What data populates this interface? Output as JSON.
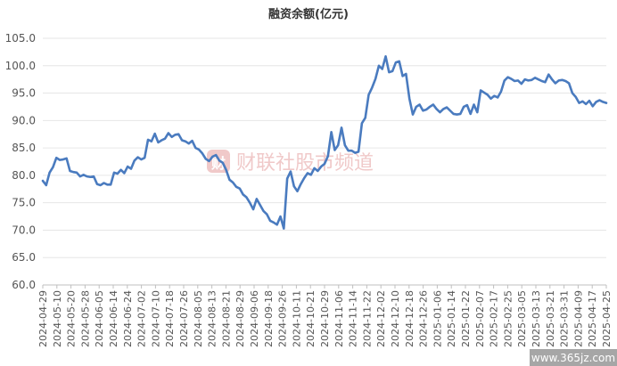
{
  "chart_data": {
    "type": "line",
    "title": "融资余额(亿元)",
    "xlabel": "",
    "ylabel": "",
    "ylim": [
      60.0,
      105.0
    ],
    "yticks": [
      "60.0",
      "65.0",
      "70.0",
      "75.0",
      "80.0",
      "85.0",
      "90.0",
      "95.0",
      "100.0",
      "105.0"
    ],
    "xticks": [
      "2024-04-29",
      "2024-05-10",
      "2024-05-20",
      "2024-05-28",
      "2024-06-05",
      "2024-06-14",
      "2024-06-24",
      "2024-07-02",
      "2024-07-10",
      "2024-07-18",
      "2024-07-26",
      "2024-08-05",
      "2024-08-13",
      "2024-08-21",
      "2024-08-29",
      "2024-09-06",
      "2024-09-18",
      "2024-09-26",
      "2024-10-11",
      "2024-10-21",
      "2024-10-29",
      "2024-11-06",
      "2024-11-14",
      "2024-11-22",
      "2024-12-02",
      "2024-12-10",
      "2024-12-18",
      "2024-12-26",
      "2025-01-06",
      "2025-01-14",
      "2025-01-22",
      "2025-02-07",
      "2025-02-17",
      "2025-02-25",
      "2025-03-05",
      "2025-03-13",
      "2025-03-21",
      "2025-03-31",
      "2025-04-09",
      "2025-04-17",
      "2025-04-25"
    ],
    "grid": true,
    "legend": "none",
    "series": [
      {
        "color": "#4a7bbf",
        "values": [
          79.0,
          78.2,
          80.5,
          81.5,
          83.2,
          82.8,
          82.9,
          83.1,
          80.8,
          80.6,
          80.5,
          79.8,
          80.1,
          79.8,
          79.7,
          79.8,
          78.4,
          78.2,
          78.6,
          78.3,
          78.3,
          80.5,
          80.3,
          81.0,
          80.4,
          81.6,
          81.2,
          82.7,
          83.3,
          82.9,
          83.2,
          86.5,
          86.2,
          87.6,
          86.0,
          86.4,
          86.7,
          87.7,
          87.0,
          87.4,
          87.5,
          86.4,
          86.2,
          85.8,
          86.3,
          85.0,
          84.7,
          84.0,
          83.0,
          82.6,
          83.4,
          83.7,
          82.7,
          82.3,
          81.0,
          79.2,
          78.7,
          77.9,
          77.6,
          76.5,
          76.0,
          75.0,
          73.8,
          75.7,
          74.6,
          73.5,
          72.9,
          71.7,
          71.4,
          71.0,
          72.5,
          70.3,
          79.4,
          80.7,
          78.0,
          77.1,
          78.4,
          79.5,
          80.4,
          80.1,
          81.3,
          80.8,
          81.6,
          82.1,
          83.5,
          87.9,
          84.6,
          85.5,
          88.7,
          85.5,
          84.5,
          84.5,
          84.1,
          84.3,
          89.5,
          90.5,
          94.7,
          96.0,
          97.6,
          100.0,
          99.4,
          101.7,
          98.8,
          99.0,
          100.6,
          100.8,
          98.1,
          98.5,
          94.0,
          91.1,
          92.5,
          92.9,
          91.8,
          92.0,
          92.5,
          92.9,
          92.1,
          91.5,
          92.1,
          92.4,
          91.8,
          91.2,
          91.1,
          91.2,
          92.5,
          92.8,
          91.2,
          92.9,
          91.5,
          95.5,
          95.1,
          94.7,
          94.0,
          94.5,
          94.2,
          95.3,
          97.3,
          97.9,
          97.6,
          97.2,
          97.3,
          96.7,
          97.5,
          97.3,
          97.4,
          97.8,
          97.5,
          97.2,
          97.0,
          98.4,
          97.5,
          96.8,
          97.3,
          97.4,
          97.2,
          96.8,
          95.0,
          94.3,
          93.2,
          93.5,
          93.0,
          93.6,
          92.6,
          93.4,
          93.7,
          93.4,
          93.2
        ]
      }
    ]
  },
  "watermark": {
    "logo_glyph": "财",
    "text": "财联社股市频道"
  },
  "corner_mark": {
    "text": "www.365jz.com"
  }
}
